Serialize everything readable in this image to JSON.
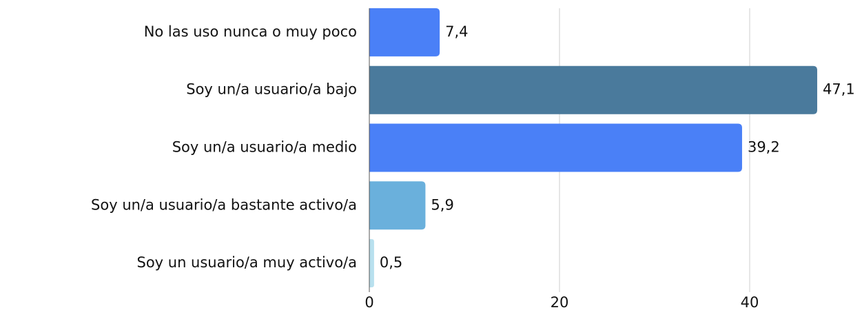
{
  "chart_data": {
    "type": "bar",
    "orientation": "horizontal",
    "categories": [
      "No las uso nunca o muy poco",
      "Soy un/a usuario/a bajo",
      "Soy un/a usuario/a medio",
      "Soy un/a usuario/a bastante activo/a",
      "Soy un usuario/a muy activo/a"
    ],
    "values": [
      7.4,
      47.1,
      39.2,
      5.9,
      0.5
    ],
    "value_labels": [
      "7,4",
      "47,1",
      "39,2",
      "5,9",
      "0,5"
    ],
    "colors": [
      "#4a80f7",
      "#4a7a9c",
      "#4a80f7",
      "#6ab0dc",
      "#b8e0ee"
    ],
    "xlim": [
      0,
      50
    ],
    "xticks": [
      0,
      20,
      40
    ],
    "grid": true
  }
}
